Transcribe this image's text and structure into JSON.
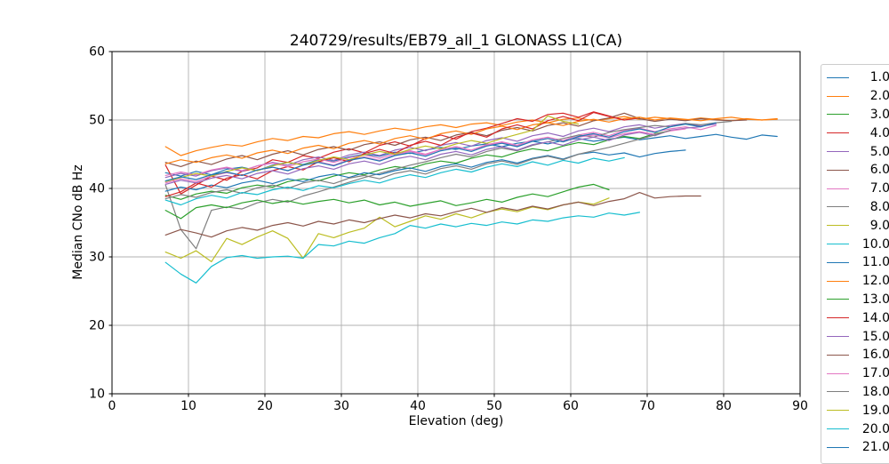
{
  "title": "240729/results/EB79_all_1 GLONASS L1(CA)",
  "chart_data": {
    "type": "line",
    "title": "240729/results/EB79_all_1 GLONASS L1(CA)",
    "xlabel": "Elevation (deg)",
    "ylabel": "Median CNo dB Hz",
    "xlim": [
      0,
      90
    ],
    "ylim": [
      10,
      60
    ],
    "xticks": [
      0,
      10,
      20,
      30,
      40,
      50,
      60,
      70,
      80,
      90
    ],
    "yticks": [
      10,
      20,
      30,
      40,
      50,
      60
    ],
    "grid": true,
    "grid_color": "#b0b0b0",
    "axis_color": "#000000",
    "legend_position": "outside-right-clipped",
    "x0": 7,
    "dx": 2,
    "series": [
      {
        "name": "1.0",
        "color": "#1f77b4",
        "values": [
          42.3,
          41.8,
          42.5,
          42.0,
          42.8,
          43.1,
          42.6,
          43.4,
          43.8,
          43.5,
          44.2,
          44.0,
          44.6,
          45.0,
          44.7,
          45.3,
          45.1,
          45.6,
          46.0,
          45.7,
          46.2,
          46.5,
          46.1,
          46.6,
          46.9,
          46.5,
          47.0,
          47.3,
          46.9,
          47.2,
          47.5,
          47.1,
          47.4,
          47.7,
          47.3,
          47.6,
          47.9,
          47.5,
          47.2,
          47.8,
          47.6
        ]
      },
      {
        "name": "2.0",
        "color": "#ff7f0e",
        "values": [
          46.1,
          44.8,
          45.5,
          46.0,
          46.4,
          46.2,
          46.8,
          47.3,
          47.0,
          47.6,
          47.4,
          48.0,
          48.3,
          47.9,
          48.4,
          48.8,
          48.5,
          49.0,
          49.3,
          48.9,
          49.4,
          49.6,
          49.2,
          49.7,
          50.0,
          49.6,
          50.1,
          50.3,
          49.9,
          50.2,
          50.5,
          50.1,
          50.4,
          50.2,
          50.0,
          50.3,
          50.1,
          49.9,
          50.2,
          50.0,
          50.1
        ]
      },
      {
        "name": "3.0",
        "color": "#2ca02c",
        "values": [
          39.0,
          38.4,
          39.2,
          39.6,
          39.3,
          40.1,
          40.5,
          40.2,
          41.0,
          41.4,
          41.1,
          41.8,
          42.3,
          42.0,
          42.7,
          43.2,
          42.9,
          43.6,
          44.0,
          43.7,
          44.4,
          44.9,
          44.6,
          45.3,
          45.8,
          45.5,
          46.2,
          46.7,
          46.4,
          47.1,
          47.6,
          47.3,
          48.0,
          48.4
        ]
      },
      {
        "name": "4.0",
        "color": "#d62728",
        "values": [
          43.4,
          39.2,
          40.5,
          41.8,
          41.2,
          42.5,
          43.0,
          44.2,
          43.8,
          44.8,
          44.4,
          45.3,
          45.8,
          45.2,
          46.3,
          46.8,
          46.2,
          47.3,
          47.8,
          47.2,
          48.3,
          48.8,
          49.5,
          50.2,
          49.8,
          50.8,
          51.0,
          50.4,
          51.2,
          50.6,
          50.0,
          50.3
        ]
      },
      {
        "name": "5.0",
        "color": "#9467bd",
        "values": [
          41.6,
          42.2,
          41.8,
          42.6,
          43.0,
          42.5,
          43.3,
          43.8,
          43.4,
          44.2,
          44.6,
          44.1,
          44.9,
          45.3,
          44.8,
          45.6,
          46.0,
          45.5,
          46.3,
          46.7,
          46.2,
          47.0,
          47.4,
          46.9,
          47.7,
          48.1,
          47.6,
          48.4,
          48.8,
          48.3,
          49.0,
          49.3,
          48.8,
          49.2,
          49.5,
          49.1,
          49.4
        ]
      },
      {
        "name": "6.0",
        "color": "#8c564b",
        "values": [
          43.8,
          43.2,
          44.0,
          43.5,
          44.3,
          44.8,
          44.2,
          45.0,
          45.5,
          44.9,
          45.7,
          46.1,
          45.6,
          46.4,
          46.8,
          46.3,
          47.1,
          47.5,
          47.0,
          47.8,
          48.2,
          47.7,
          48.5,
          48.9,
          48.4,
          49.2,
          49.6,
          49.1,
          49.9,
          50.3,
          51.0,
          50.2,
          49.8,
          50.1,
          49.9,
          50.2,
          50.0,
          49.9,
          50.0
        ]
      },
      {
        "name": "7.0",
        "color": "#e377c2",
        "values": [
          40.8,
          41.4,
          41.0,
          41.8,
          42.3,
          41.9,
          42.7,
          43.1,
          42.6,
          43.4,
          43.9,
          43.4,
          44.2,
          44.6,
          44.1,
          44.9,
          45.4,
          44.9,
          45.7,
          46.1,
          45.6,
          46.4,
          46.8,
          46.3,
          47.1,
          47.5,
          47.0,
          47.8,
          48.2,
          47.7,
          48.5,
          48.8,
          48.3,
          48.7,
          49.0,
          48.6,
          49.2
        ]
      },
      {
        "name": "8.0",
        "color": "#7f7f7f",
        "values": [
          40.5,
          34.0,
          31.2,
          36.8,
          37.3,
          37.0,
          37.9,
          38.4,
          38.0,
          38.9,
          39.5,
          40.2,
          40.9,
          41.6,
          42.2,
          42.8,
          43.4,
          43.9,
          44.5,
          45.0,
          44.6,
          45.4,
          45.9,
          45.5,
          46.3,
          46.8,
          47.3,
          47.8,
          47.5,
          48.2,
          48.6,
          48.9,
          49.2,
          49.0,
          49.5,
          49.3,
          49.6,
          49.8
        ]
      },
      {
        "name": "9.0",
        "color": "#bcbd22",
        "values": [
          30.7,
          29.8,
          30.9,
          29.3,
          32.7,
          31.8,
          32.9,
          33.8,
          32.7,
          29.8,
          33.4,
          32.8,
          33.6,
          34.2,
          35.8,
          34.4,
          35.2,
          36.0,
          35.5,
          36.3,
          35.7,
          36.5,
          37.0,
          36.6,
          37.3,
          36.9,
          37.6,
          38.0,
          37.7,
          38.6
        ]
      },
      {
        "name": "10.0",
        "color": "#17becf",
        "values": [
          29.2,
          27.5,
          26.2,
          28.6,
          29.9,
          30.2,
          29.8,
          30.0,
          30.1,
          29.8,
          31.8,
          31.6,
          32.3,
          32.0,
          32.8,
          33.4,
          34.6,
          34.2,
          34.8,
          34.4,
          34.9,
          34.6,
          35.1,
          34.8,
          35.4,
          35.2,
          35.7,
          36.0,
          35.8,
          36.4,
          36.1,
          36.5
        ]
      },
      {
        "name": "11.0",
        "color": "#1f77b4",
        "values": [
          39.6,
          40.2,
          39.8,
          40.5,
          40.1,
          40.8,
          41.2,
          40.7,
          41.4,
          41.0,
          41.7,
          42.1,
          41.6,
          42.3,
          42.0,
          42.6,
          43.0,
          42.5,
          43.2,
          43.6,
          43.1,
          43.8,
          44.2,
          43.7,
          44.4,
          44.8,
          44.3,
          45.0,
          45.3,
          44.9,
          45.2,
          44.6,
          45.1,
          45.4,
          45.6
        ]
      },
      {
        "name": "12.0",
        "color": "#ff7f0e",
        "values": [
          43.6,
          44.2,
          43.8,
          44.5,
          44.9,
          44.4,
          45.2,
          45.6,
          45.1,
          45.9,
          46.3,
          45.8,
          46.6,
          47.0,
          46.5,
          47.3,
          47.7,
          47.2,
          48.0,
          48.4,
          47.9,
          48.7,
          49.1,
          48.6,
          49.3,
          49.6,
          49.2,
          49.8,
          50.1,
          49.7,
          50.2,
          50.4,
          50.0,
          50.3,
          50.1,
          49.9,
          50.2,
          50.4,
          50.1,
          50.0,
          50.2
        ]
      },
      {
        "name": "13.0",
        "color": "#2ca02c",
        "values": [
          36.8,
          35.6,
          37.2,
          37.6,
          37.2,
          37.9,
          38.3,
          37.8,
          38.2,
          37.7,
          38.1,
          38.4,
          37.9,
          38.3,
          37.6,
          38.0,
          37.4,
          37.8,
          38.2,
          37.5,
          37.9,
          38.4,
          38.0,
          38.7,
          39.2,
          38.8,
          39.5,
          40.2,
          40.6,
          39.8
        ]
      },
      {
        "name": "14.0",
        "color": "#d62728",
        "values": [
          38.8,
          39.5,
          40.8,
          40.2,
          41.5,
          42.0,
          41.4,
          42.6,
          43.2,
          42.7,
          43.9,
          44.5,
          43.9,
          45.1,
          45.7,
          45.1,
          46.3,
          46.9,
          46.3,
          47.5,
          48.1,
          47.5,
          48.7,
          49.3,
          48.7,
          49.9,
          50.5,
          49.9,
          51.1,
          50.5,
          50.0
        ]
      },
      {
        "name": "15.0",
        "color": "#9467bd",
        "values": [
          40.6,
          41.2,
          40.8,
          41.5,
          41.9,
          41.4,
          42.2,
          42.6,
          42.1,
          42.9,
          43.3,
          42.8,
          43.6,
          44.0,
          43.5,
          44.3,
          44.7,
          44.2,
          45.0,
          45.4,
          44.9,
          45.7,
          46.1,
          45.6,
          46.4,
          46.8,
          46.3,
          47.1,
          47.5,
          47.0,
          47.8,
          48.2,
          47.7,
          48.5,
          48.8,
          49.0
        ]
      },
      {
        "name": "16.0",
        "color": "#8c564b",
        "values": [
          33.2,
          34.0,
          33.5,
          32.9,
          33.8,
          34.3,
          33.9,
          34.6,
          35.0,
          34.5,
          35.2,
          34.8,
          35.4,
          35.0,
          35.6,
          36.1,
          35.7,
          36.3,
          36.0,
          36.6,
          37.1,
          36.5,
          37.2,
          36.8,
          37.4,
          37.0,
          37.6,
          38.0,
          37.5,
          38.1,
          38.5,
          39.4,
          38.6,
          38.8,
          38.9,
          38.9
        ]
      },
      {
        "name": "17.0",
        "color": "#e377c2",
        "values": [
          41.9,
          42.4,
          42.0,
          42.7,
          43.1,
          42.6,
          43.3,
          43.7,
          43.2,
          43.9,
          44.3,
          43.8,
          44.5,
          44.9,
          44.4,
          45.1,
          45.5,
          45.0,
          45.7,
          46.1,
          45.6,
          46.3,
          46.7,
          46.2,
          46.9,
          47.3,
          46.8,
          47.5,
          47.8,
          47.4,
          48.0,
          48.3,
          47.9,
          48.4,
          48.7
        ]
      },
      {
        "name": "18.0",
        "color": "#7f7f7f",
        "values": [
          38.5,
          39.1,
          38.7,
          39.4,
          39.8,
          39.3,
          40.1,
          40.5,
          40.0,
          40.8,
          41.2,
          40.7,
          41.5,
          41.9,
          41.4,
          42.2,
          42.6,
          42.1,
          42.9,
          43.3,
          42.8,
          43.6,
          44.0,
          43.5,
          44.3,
          44.7,
          44.2,
          45.0,
          45.5,
          46.0,
          46.6,
          47.2,
          47.8,
          48.5
        ]
      },
      {
        "name": "19.0",
        "color": "#bcbd22",
        "values": [
          41.0,
          41.6,
          42.2,
          41.8,
          42.5,
          43.0,
          42.6,
          43.3,
          43.8,
          43.4,
          44.1,
          44.6,
          44.2,
          44.9,
          45.4,
          45.0,
          45.7,
          46.2,
          45.8,
          46.5,
          47.0,
          46.6,
          47.3,
          47.9,
          48.5,
          50.6,
          49.8,
          49.4
        ]
      },
      {
        "name": "20.0",
        "color": "#17becf",
        "values": [
          38.3,
          37.6,
          38.5,
          39.0,
          38.6,
          39.4,
          39.1,
          39.8,
          40.2,
          39.7,
          40.4,
          40.1,
          40.7,
          41.2,
          40.8,
          41.5,
          42.0,
          41.6,
          42.3,
          42.8,
          42.4,
          43.1,
          43.6,
          43.2,
          43.9,
          43.4,
          44.1,
          43.7,
          44.4,
          44.0,
          44.5
        ]
      },
      {
        "name": "21.0",
        "color": "#1f77b4",
        "values": [
          41.1,
          41.7,
          41.3,
          42.0,
          42.4,
          41.9,
          42.7,
          43.1,
          42.6,
          43.4,
          43.8,
          43.3,
          44.1,
          44.5,
          44.0,
          44.8,
          45.2,
          44.7,
          45.5,
          45.9,
          45.4,
          46.2,
          46.6,
          46.1,
          46.9,
          47.3,
          46.8,
          47.6,
          48.0,
          47.5,
          48.3,
          48.7,
          48.2,
          49.0,
          49.4,
          49.0,
          49.6
        ]
      }
    ]
  }
}
